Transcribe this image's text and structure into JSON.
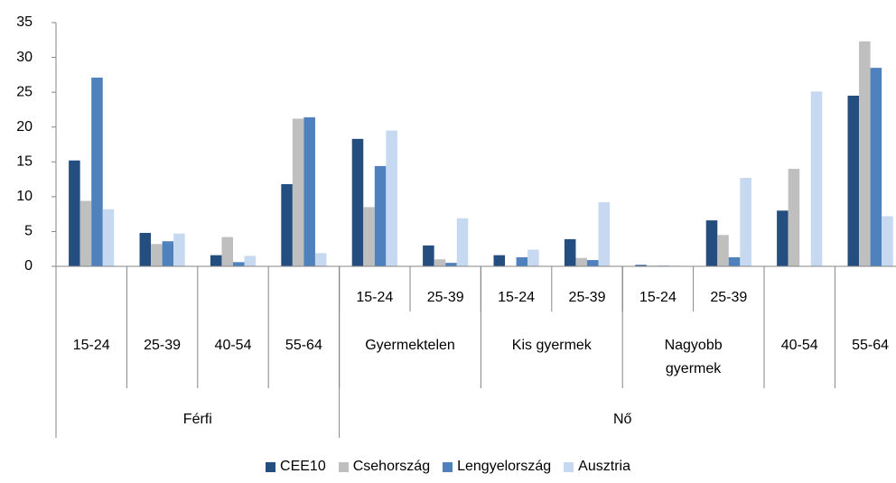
{
  "chart_data": {
    "type": "bar",
    "category_tree": [
      {
        "label": "Férfi",
        "children": [
          {
            "label": "15-24"
          },
          {
            "label": "25-39"
          },
          {
            "label": "40-54"
          },
          {
            "label": "55-64"
          }
        ]
      },
      {
        "label": "Nő",
        "children": [
          {
            "label": "Gyermektelen",
            "children": [
              {
                "label": "15-24"
              },
              {
                "label": "25-39"
              }
            ]
          },
          {
            "label": "Kis gyermek",
            "children": [
              {
                "label": "15-24"
              },
              {
                "label": "25-39"
              }
            ]
          },
          {
            "label": "Nagyobb gyermek",
            "children": [
              {
                "label": "15-24"
              },
              {
                "label": "25-39"
              }
            ]
          },
          {
            "label": "40-54"
          },
          {
            "label": "55-64"
          }
        ]
      }
    ],
    "series": [
      {
        "name": "CEE10",
        "color": "#254e80",
        "values": [
          15.2,
          4.8,
          1.6,
          11.8,
          18.3,
          3.0,
          1.6,
          3.9,
          0.2,
          6.6,
          8.0,
          24.5
        ]
      },
      {
        "name": "Csehország",
        "color": "#bfbfbf",
        "values": [
          9.4,
          3.2,
          4.2,
          21.2,
          8.5,
          1.0,
          0,
          1.2,
          0.1,
          4.5,
          14.0,
          32.3
        ]
      },
      {
        "name": "Lengyelország",
        "color": "#4f81bd",
        "values": [
          27.1,
          3.6,
          0.6,
          21.4,
          14.4,
          0.5,
          1.3,
          0.9,
          0.1,
          1.3,
          0,
          28.5
        ]
      },
      {
        "name": "Ausztria",
        "color": "#c6d9f1",
        "values": [
          8.2,
          4.7,
          1.5,
          1.9,
          19.5,
          6.9,
          2.4,
          9.2,
          0.1,
          12.7,
          25.1,
          7.2
        ]
      }
    ],
    "ylim": [
      0,
      35
    ],
    "yticks": [
      0,
      5,
      10,
      15,
      20,
      25,
      30,
      35
    ],
    "grid": false,
    "legend": "bottom"
  }
}
